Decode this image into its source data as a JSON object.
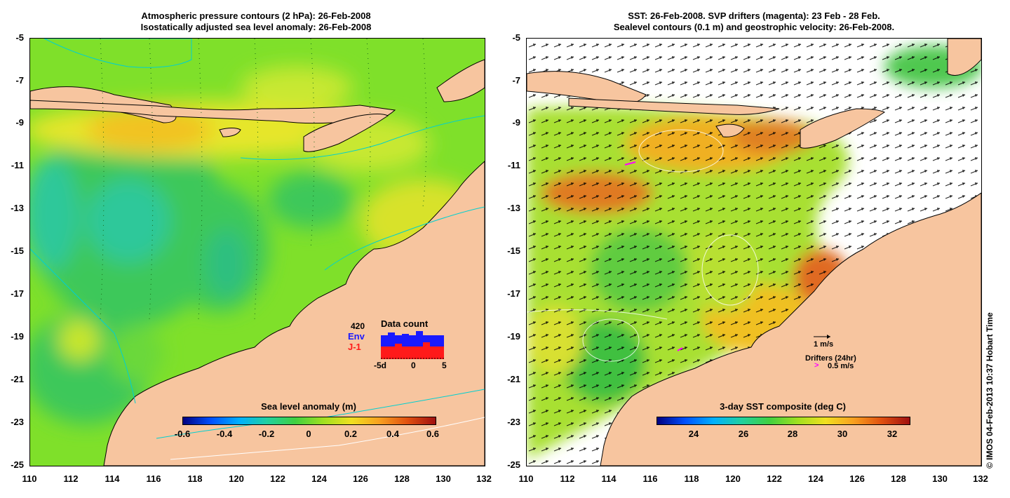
{
  "left_panel": {
    "title_line1": "Atmospheric pressure contours (2 hPa): 26-Feb-2008",
    "title_line2": "Isostatically adjusted sea level anomaly: 26-Feb-2008",
    "colorbar_title": "Sea level anomaly (m)",
    "colorbar_ticks": [
      "-0.6",
      "-0.4",
      "-0.2",
      "0",
      "0.2",
      "0.4",
      "0.6"
    ],
    "data_count": {
      "title": "Data count",
      "max_label": "420",
      "env_label": "Env",
      "j1_label": "J-1",
      "x_ticks": [
        "-5d",
        "0",
        "5"
      ],
      "env_color": "#1a1aff",
      "j1_color": "#ff1a1a"
    }
  },
  "right_panel": {
    "title_line1": "SST: 26-Feb-2008. SVP drifters (magenta): 23 Feb - 28 Feb.",
    "title_line2": "Sealevel contours (0.1 m) and geostrophic velocity: 26-Feb-2008.",
    "colorbar_title": "3-day SST composite (deg C)",
    "colorbar_ticks": [
      "24",
      "26",
      "28",
      "30",
      "32"
    ],
    "velocity_scale_label": "1 m/s",
    "drifters_label": "Drifters (24hr)",
    "drifters_speed_label": "0.5 m/s",
    "drifter_color": "#ff00ff"
  },
  "axes": {
    "y_ticks": [
      "-5",
      "-7",
      "-9",
      "-11",
      "-13",
      "-15",
      "-17",
      "-19",
      "-21",
      "-23",
      "-25"
    ],
    "x_ticks": [
      "110",
      "112",
      "114",
      "116",
      "118",
      "120",
      "122",
      "124",
      "126",
      "128",
      "130",
      "132"
    ]
  },
  "credit": "© IMOS 04-Feb-2013 10:37 Hobart Time",
  "colors": {
    "land": "#f7c59f",
    "coast": "#000000",
    "sla_dominant": "#7fe02a",
    "sst_dominant": "#c8e81a"
  }
}
